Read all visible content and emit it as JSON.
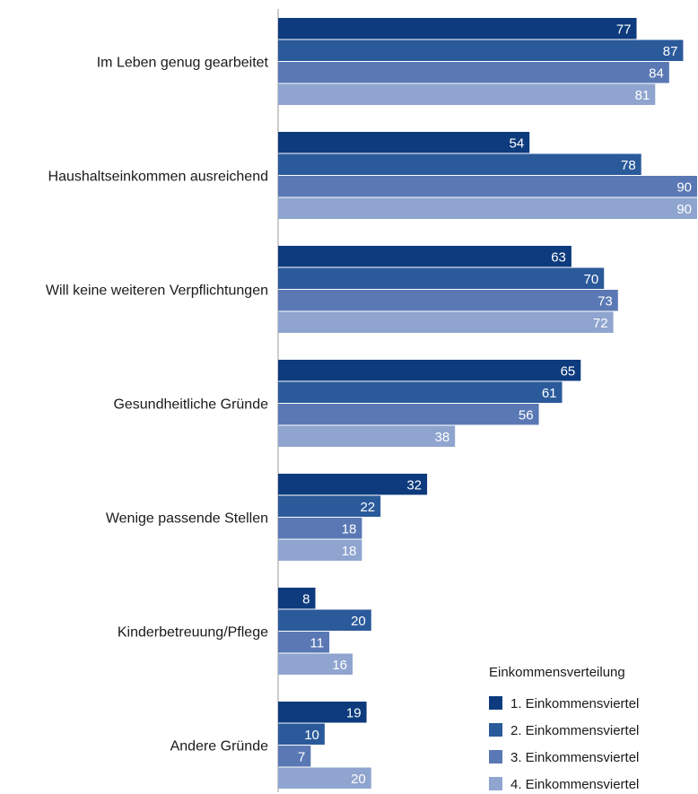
{
  "chart_data": {
    "type": "bar",
    "orientation": "horizontal",
    "categories": [
      "Im Leben genug gearbeitet",
      "Haushaltseinkommen ausreichend",
      "Will keine weiteren Verpflichtungen",
      "Gesundheitliche Gründe",
      "Wenige passende Stellen",
      "Kinderbetreuung/Pflege",
      "Andere Gründe"
    ],
    "series": [
      {
        "name": "1. Einkommensviertel",
        "color": "#0d3b7d",
        "values": [
          77,
          54,
          63,
          65,
          32,
          8,
          19
        ]
      },
      {
        "name": "2. Einkommensviertel",
        "color": "#2b5a9b",
        "values": [
          87,
          78,
          70,
          61,
          22,
          20,
          10
        ]
      },
      {
        "name": "3. Einkommensviertel",
        "color": "#5a78b4",
        "values": [
          84,
          90,
          73,
          56,
          18,
          11,
          7
        ]
      },
      {
        "name": "4. Einkommensviertel",
        "color": "#8fa5cf",
        "values": [
          81,
          90,
          72,
          38,
          18,
          16,
          20
        ]
      }
    ],
    "xlim": [
      0,
      90
    ],
    "legend": {
      "title": "Einkommensverteilung",
      "position": "bottom-right"
    },
    "grid": false,
    "show_value_labels": true
  }
}
